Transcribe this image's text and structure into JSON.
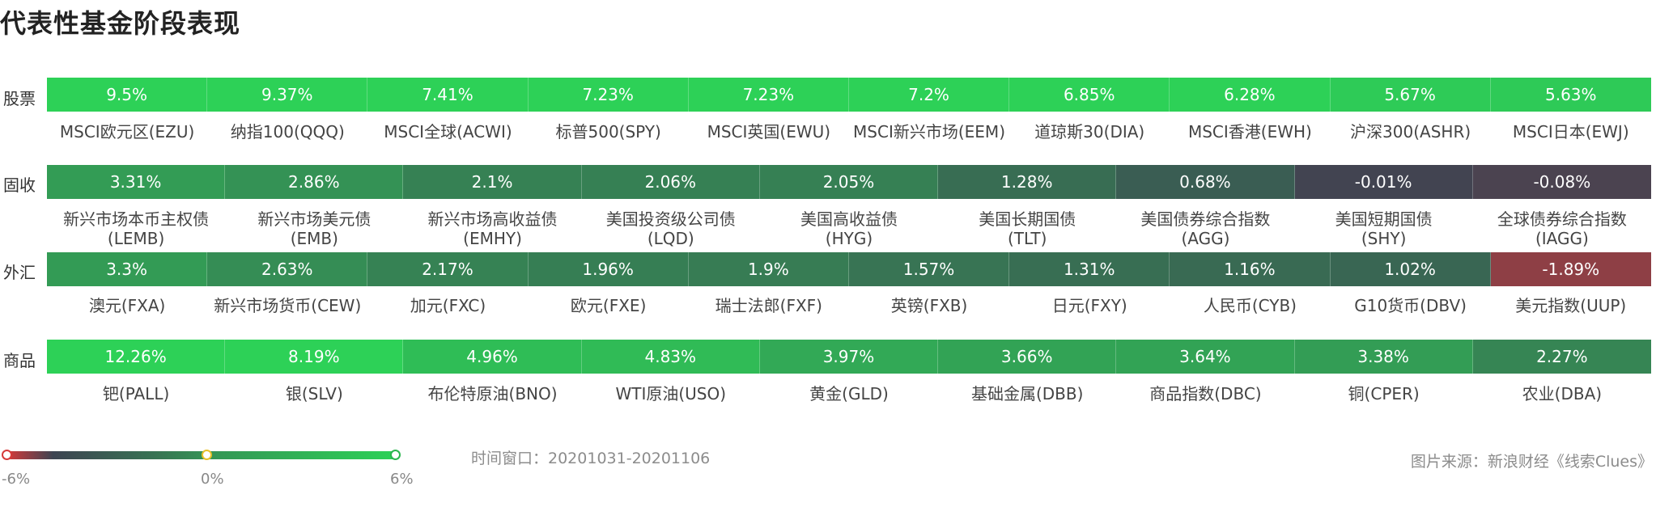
{
  "title": "代表性基金阶段表现",
  "colors": {
    "neg": "#d63a3a",
    "zero": "#3d4452",
    "pos": "#2dd157",
    "label_text": "#ffffff"
  },
  "chart_data": {
    "type": "heatmap",
    "title": "代表性基金阶段表现",
    "value_unit": "%",
    "color_scale": {
      "min": -6,
      "mid": 0,
      "max": 6,
      "min_label": "-6%",
      "mid_label": "0%",
      "max_label": "6%"
    },
    "rows": [
      {
        "label": "股票",
        "cells": [
          {
            "name": "MSCI欧元区(EZU)",
            "value": 9.5,
            "text": "9.5%"
          },
          {
            "name": "纳指100(QQQ)",
            "value": 9.37,
            "text": "9.37%"
          },
          {
            "name": "MSCI全球(ACWI)",
            "value": 7.41,
            "text": "7.41%"
          },
          {
            "name": "标普500(SPY)",
            "value": 7.23,
            "text": "7.23%"
          },
          {
            "name": "MSCI英国(EWU)",
            "value": 7.23,
            "text": "7.23%"
          },
          {
            "name": "MSCI新兴市场(EEM)",
            "value": 7.2,
            "text": "7.2%"
          },
          {
            "name": "道琼斯30(DIA)",
            "value": 6.85,
            "text": "6.85%"
          },
          {
            "name": "MSCI香港(EWH)",
            "value": 6.28,
            "text": "6.28%"
          },
          {
            "name": "沪深300(ASHR)",
            "value": 5.67,
            "text": "5.67%"
          },
          {
            "name": "MSCI日本(EWJ)",
            "value": 5.63,
            "text": "5.63%"
          }
        ]
      },
      {
        "label": "固收",
        "cells": [
          {
            "name": "新兴市场本币主权债\n(LEMB)",
            "value": 3.31,
            "text": "3.31%"
          },
          {
            "name": "新兴市场美元债\n(EMB)",
            "value": 2.86,
            "text": "2.86%"
          },
          {
            "name": "新兴市场高收益债\n(EMHY)",
            "value": 2.1,
            "text": "2.1%"
          },
          {
            "name": "美国投资级公司债\n(LQD)",
            "value": 2.06,
            "text": "2.06%"
          },
          {
            "name": "美国高收益债\n(HYG)",
            "value": 2.05,
            "text": "2.05%"
          },
          {
            "name": "美国长期国债\n(TLT)",
            "value": 1.28,
            "text": "1.28%"
          },
          {
            "name": "美国债券综合指数\n(AGG)",
            "value": 0.68,
            "text": "0.68%"
          },
          {
            "name": "美国短期国债\n(SHY)",
            "value": -0.01,
            "text": "-0.01%"
          },
          {
            "name": "全球债券综合指数\n(IAGG)",
            "value": -0.08,
            "text": "-0.08%"
          }
        ]
      },
      {
        "label": "外汇",
        "cells": [
          {
            "name": "澳元(FXA)",
            "value": 3.3,
            "text": "3.3%"
          },
          {
            "name": "新兴市场货币(CEW)",
            "value": 2.63,
            "text": "2.63%"
          },
          {
            "name": "加元(FXC)",
            "value": 2.17,
            "text": "2.17%"
          },
          {
            "name": "欧元(FXE)",
            "value": 1.96,
            "text": "1.96%"
          },
          {
            "name": "瑞士法郎(FXF)",
            "value": 1.9,
            "text": "1.9%"
          },
          {
            "name": "英镑(FXB)",
            "value": 1.57,
            "text": "1.57%"
          },
          {
            "name": "日元(FXY)",
            "value": 1.31,
            "text": "1.31%"
          },
          {
            "name": "人民币(CYB)",
            "value": 1.16,
            "text": "1.16%"
          },
          {
            "name": "G10货币(DBV)",
            "value": 1.02,
            "text": "1.02%"
          },
          {
            "name": "美元指数(UUP)",
            "value": -1.89,
            "text": "-1.89%"
          }
        ]
      },
      {
        "label": "商品",
        "cells": [
          {
            "name": "钯(PALL)",
            "value": 12.26,
            "text": "12.26%"
          },
          {
            "name": "银(SLV)",
            "value": 8.19,
            "text": "8.19%"
          },
          {
            "name": "布伦特原油(BNO)",
            "value": 4.96,
            "text": "4.96%"
          },
          {
            "name": "WTI原油(USO)",
            "value": 4.83,
            "text": "4.83%"
          },
          {
            "name": "黄金(GLD)",
            "value": 3.97,
            "text": "3.97%"
          },
          {
            "name": "基础金属(DBB)",
            "value": 3.66,
            "text": "3.66%"
          },
          {
            "name": "商品指数(DBC)",
            "value": 3.64,
            "text": "3.64%"
          },
          {
            "name": "铜(CPER)",
            "value": 3.38,
            "text": "3.38%"
          },
          {
            "name": "农业(DBA)",
            "value": 2.27,
            "text": "2.27%"
          }
        ]
      }
    ]
  },
  "footer": {
    "time_window": "时间窗口：20201031-20201106",
    "source": "图片来源：新浪财经《线索Clues》"
  }
}
